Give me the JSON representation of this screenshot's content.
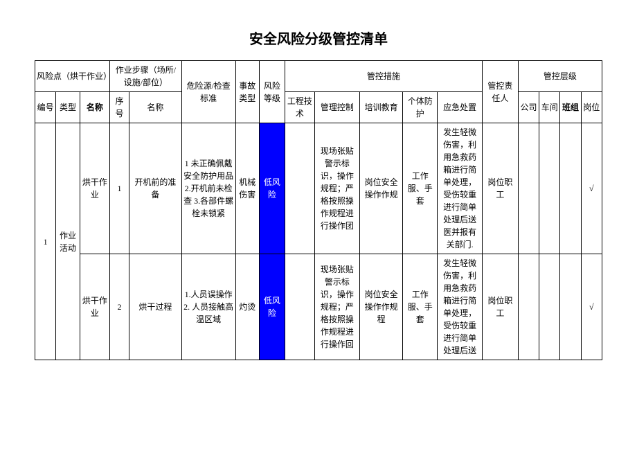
{
  "title": "安全风险分级管控清单",
  "header": {
    "risk_point": "风险点（烘干作业）",
    "work_step": "作业步骤（场所/设施/部位）",
    "hazard_standard": "危险源/检查标准",
    "accident_type": "事故类型",
    "risk_level": "风险等级",
    "control_measures": "管控措施",
    "responsible": "管控责任人",
    "control_level": "管控层级",
    "sub": {
      "num": "编号",
      "type": "类型",
      "name": "名称",
      "seq": "序号",
      "step_name": "名称",
      "engineering": "工程技术",
      "management": "管理控制",
      "training": "培训教育",
      "ppe": "个体防护",
      "emergency": "应急处置",
      "company": "公司",
      "workshop": "车间",
      "team": "班组",
      "post": "岗位"
    }
  },
  "row_group": {
    "num": "1",
    "type": "作业活动"
  },
  "rows": [
    {
      "name": "烘干作业",
      "seq": "1",
      "step_name": "开机前的准备",
      "hazard": "1 未正确佩戴安全防护用品 2.开机前未检查 3.各部件螺栓未锁紧",
      "accident": "机械伤害",
      "risk": "低风险",
      "engineering": "",
      "management": "现场张贴警示标识，操作规程；严格按照操作规程进行操作团",
      "training": "岗位安全操作作规",
      "ppe": "工作服、手套",
      "emergency": "发生轻微伤害，利用急救药箱进行简单处理，受伤较重进行简单处理后送医并报有关部门.",
      "responsible": "岗位职工",
      "company": "",
      "workshop": "",
      "team": "",
      "post": "√"
    },
    {
      "name": "烘干作业",
      "seq": "2",
      "step_name": "烘干过程",
      "hazard": "1.人员误操作 2. 人员接触高温区域",
      "accident": "灼烫",
      "risk": "低风险",
      "engineering": "",
      "management": "现场张贴警示标识，操作规程；严格按照操作规程进行操作回",
      "training": "岗位安全操作作规程",
      "ppe": "工作服、手套",
      "emergency": "发生轻微伤害，利用急救药箱进行简单处理，受伤较重进行简单处理后送",
      "responsible": "岗位职工",
      "company": "",
      "workshop": "",
      "team": "",
      "post": "√"
    }
  ],
  "colors": {
    "risk_low_bg": "#0000ff",
    "risk_low_text": "#ffffff",
    "border": "#000000",
    "background": "#ffffff"
  }
}
